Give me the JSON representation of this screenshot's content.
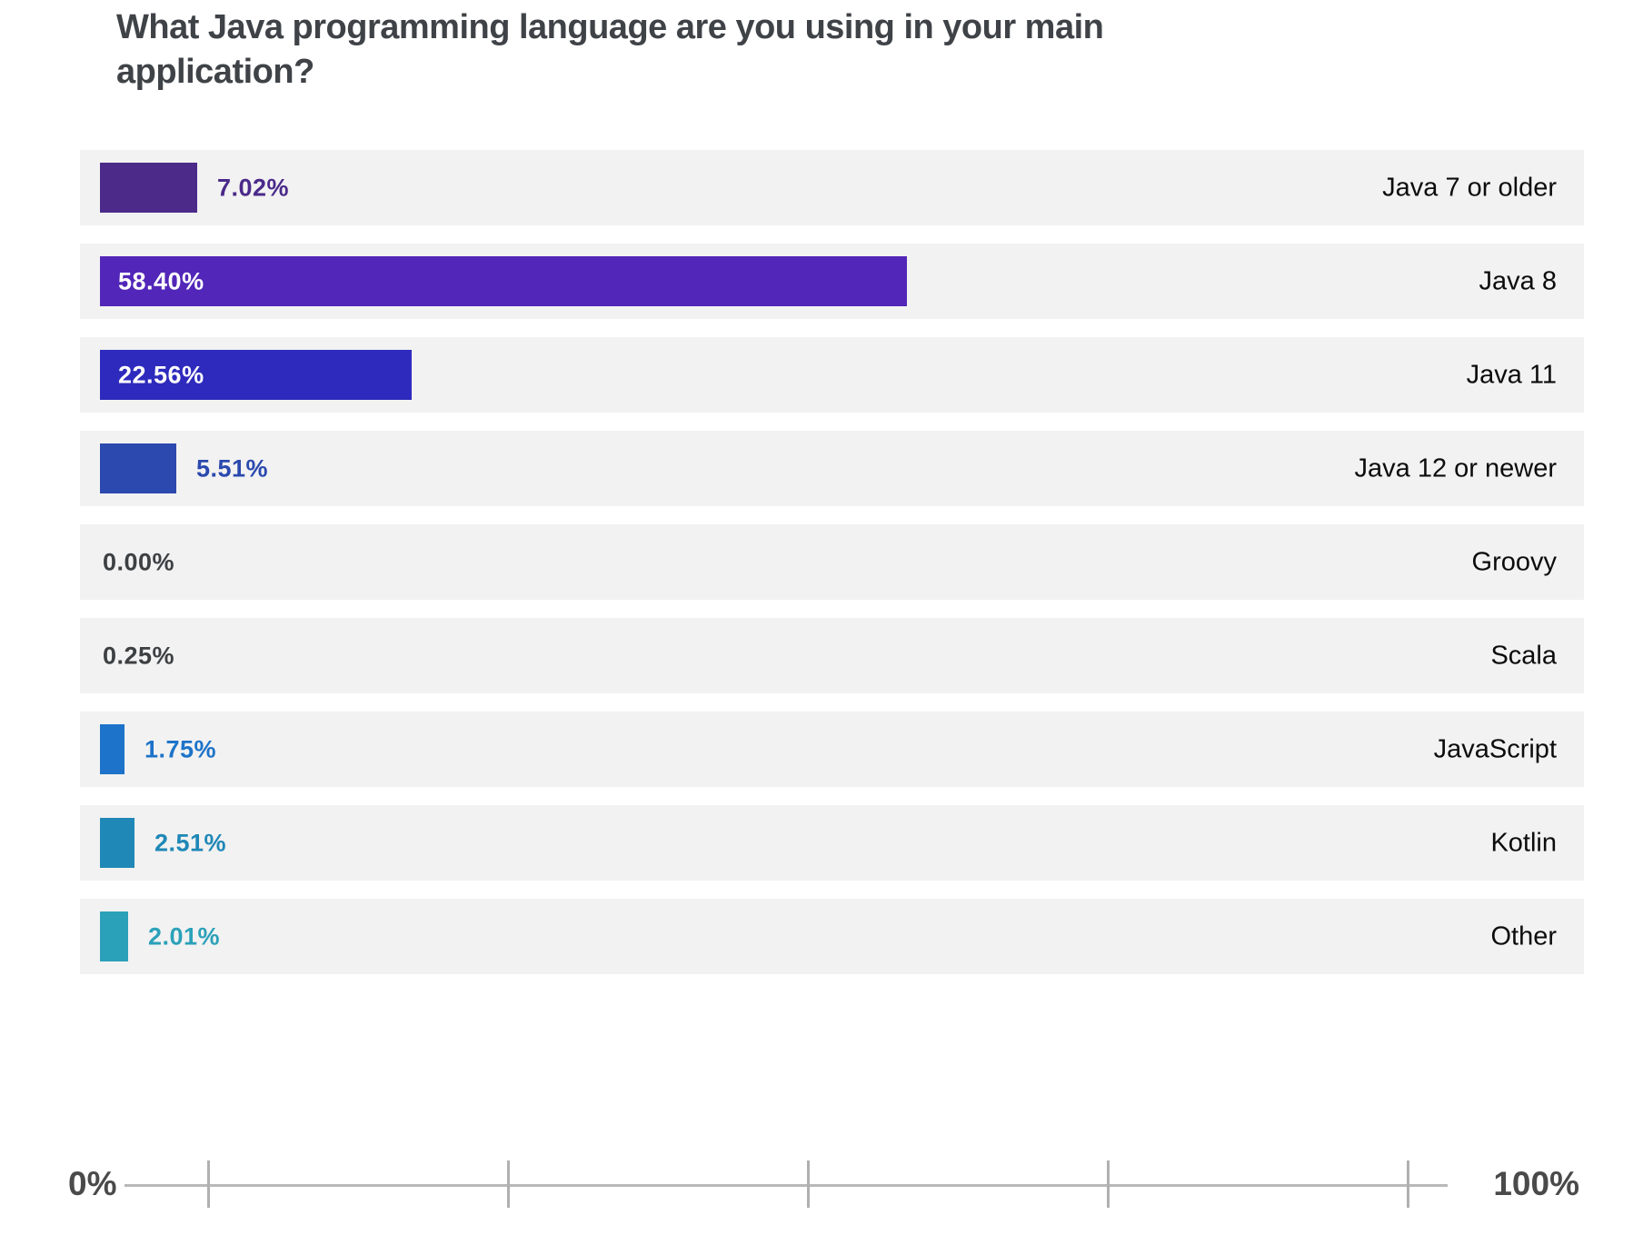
{
  "chart": {
    "title": "What Java programming language are you using in your main application?",
    "axis": {
      "min_label": "0%",
      "max_label": "100%"
    }
  },
  "chart_data": {
    "type": "bar",
    "orientation": "horizontal",
    "title": "What Java programming language are you using in your main application?",
    "categories": [
      "Java 7 or older",
      "Java 8",
      "Java 11",
      "Java 12 or newer",
      "Groovy",
      "Scala",
      "JavaScript",
      "Kotlin",
      "Other"
    ],
    "values": [
      7.02,
      58.4,
      22.56,
      5.51,
      0.0,
      0.25,
      1.75,
      2.51,
      2.01
    ],
    "value_labels": [
      "7.02%",
      "58.40%",
      "22.56%",
      "5.51%",
      "0.00%",
      "0.25%",
      "1.75%",
      "2.51%",
      "2.01%"
    ],
    "bar_colors": [
      "#4b2a8a",
      "#5226b8",
      "#2e2abd",
      "#2b49ae",
      null,
      null,
      "#1d73c9",
      "#2088b6",
      "#2ba1b9"
    ],
    "xlim": [
      0,
      100
    ],
    "x_tick_labels": [
      "0%",
      "100%"
    ],
    "legend_position": "none",
    "grid": false
  },
  "style": {
    "row_background": "#f2f2f2",
    "title_color": "#3f4347",
    "category_color": "#0c0c0c",
    "zero_label_color": "#3d4043",
    "inside_label_color": "#ffffff",
    "axis_label_color": "#4a4a4a",
    "axis_line_color": "#b9b9b9"
  }
}
